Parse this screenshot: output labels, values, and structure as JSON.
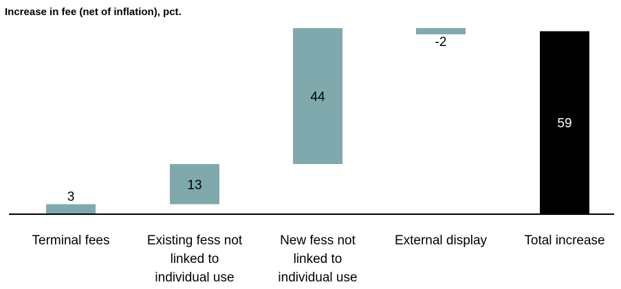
{
  "chart_data": {
    "type": "bar",
    "subtype": "waterfall",
    "title": "Increase in fee (net of inflation), pct.",
    "xlabel": "",
    "ylabel": "",
    "ylim": [
      0,
      60
    ],
    "grid": false,
    "legend": "none",
    "categories": [
      [
        "Terminal fees"
      ],
      [
        "Existing fess not",
        "linked to",
        "individual use"
      ],
      [
        "New fess not",
        "linked to",
        "individual use"
      ],
      [
        "External display"
      ],
      [
        "Total increase"
      ]
    ],
    "values": [
      3,
      13,
      44,
      -2,
      59
    ],
    "labels": [
      "3",
      "13",
      "44",
      "-2",
      "59"
    ],
    "is_total": [
      false,
      false,
      false,
      false,
      true
    ],
    "colors": {
      "step": "#7fa9ad",
      "total": "#000000",
      "axis": "#000000",
      "label_dark": "#000000",
      "label_light": "#ffffff"
    }
  }
}
